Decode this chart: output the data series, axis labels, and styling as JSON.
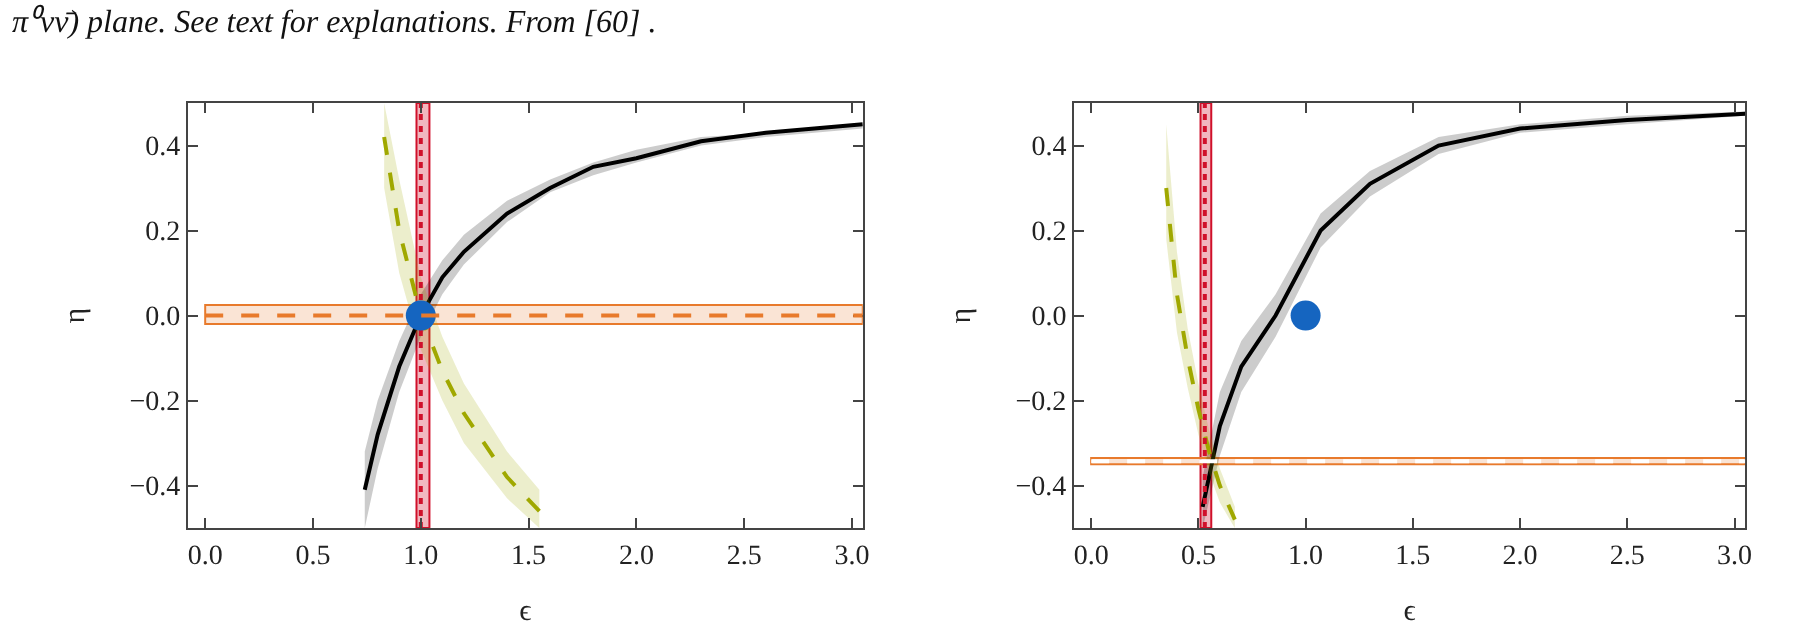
{
  "chart_data": [
    {
      "type": "line",
      "annotations": [
        "π⁰νν̄) plane. See text for explanations. From [60] ."
      ],
      "xlabel": "ϵ",
      "ylabel": "η",
      "xlim": [
        -0.08,
        3.05
      ],
      "ylim": [
        -0.5,
        0.5
      ],
      "grid": false,
      "marker": "none",
      "xticks": [
        {
          "value": 0,
          "label": "0.0"
        },
        {
          "value": 0.5,
          "label": "0.5"
        },
        {
          "value": 1,
          "label": "1.0"
        },
        {
          "value": 1.5,
          "label": "1.5"
        },
        {
          "value": 2,
          "label": "2.0"
        },
        {
          "value": 2.5,
          "label": "2.5"
        },
        {
          "value": 3,
          "label": "3.0"
        }
      ],
      "yticks": [
        {
          "value": -0.4,
          "label": "−0.4"
        },
        {
          "value": -0.2,
          "label": "−0.2"
        },
        {
          "value": 0,
          "label": "0.0"
        },
        {
          "value": 0.2,
          "label": "0.2"
        },
        {
          "value": 0.4,
          "label": "0.4"
        }
      ],
      "bands": [
        {
          "axis": "x",
          "from": 0.98,
          "to": 1.04,
          "color": "#d0102a"
        },
        {
          "axis": "y",
          "from": -0.02,
          "to": 0.025,
          "color": "#e87a2c"
        }
      ],
      "ref_lines": [
        {
          "axis": "y",
          "value": 0,
          "color": "#e87a2c",
          "line_style": "dashed"
        }
      ],
      "series": [
        {
          "color": "#000000",
          "line_style": "solid",
          "x": [
            0.74,
            0.8,
            0.9,
            1.0,
            1.1,
            1.2,
            1.4,
            1.6,
            1.8,
            2.0,
            2.3,
            2.6,
            3.05
          ],
          "values": [
            -0.41,
            -0.28,
            -0.12,
            0.0,
            0.09,
            0.15,
            0.24,
            0.3,
            0.35,
            0.37,
            0.41,
            0.43,
            0.45
          ],
          "lower": [
            -0.5,
            -0.36,
            -0.18,
            -0.05,
            0.05,
            0.12,
            0.22,
            0.29,
            0.33,
            0.36,
            0.4,
            0.42,
            0.44
          ],
          "upper": [
            -0.32,
            -0.2,
            -0.06,
            0.05,
            0.13,
            0.19,
            0.27,
            0.32,
            0.36,
            0.39,
            0.42,
            0.43,
            0.45
          ]
        },
        {
          "color": "#a0a800",
          "line_style": "dashed",
          "x": [
            0.83,
            0.9,
            1.0,
            1.1,
            1.2,
            1.4,
            1.55
          ],
          "values": [
            0.42,
            0.2,
            0.0,
            -0.13,
            -0.23,
            -0.38,
            -0.46
          ],
          "lower": [
            0.3,
            0.1,
            -0.08,
            -0.2,
            -0.3,
            -0.43,
            -0.5
          ],
          "upper": [
            0.5,
            0.32,
            0.09,
            -0.05,
            -0.16,
            -0.32,
            -0.41
          ]
        },
        {
          "color": "#d0102a",
          "line_style": "dotted",
          "x": [
            1.0,
            1.0
          ],
          "values": [
            -0.5,
            0.5
          ]
        },
        {
          "type": "scatter",
          "marker": "circle",
          "color": "#1565c0",
          "x": [
            1.0
          ],
          "values": [
            0.0
          ]
        }
      ]
    },
    {
      "type": "line",
      "xlabel": "ϵ",
      "ylabel": "η",
      "xlim": [
        -0.08,
        3.05
      ],
      "ylim": [
        -0.5,
        0.5
      ],
      "grid": false,
      "marker": "none",
      "xticks": [
        {
          "value": 0,
          "label": "0.0"
        },
        {
          "value": 0.5,
          "label": "0.5"
        },
        {
          "value": 1,
          "label": "1.0"
        },
        {
          "value": 1.5,
          "label": "1.5"
        },
        {
          "value": 2,
          "label": "2.0"
        },
        {
          "value": 2.5,
          "label": "2.5"
        },
        {
          "value": 3,
          "label": "3.0"
        }
      ],
      "yticks": [
        {
          "value": -0.4,
          "label": "−0.4"
        },
        {
          "value": -0.2,
          "label": "−0.2"
        },
        {
          "value": 0,
          "label": "0.0"
        },
        {
          "value": 0.2,
          "label": "0.2"
        },
        {
          "value": 0.4,
          "label": "0.4"
        }
      ],
      "bands": [
        {
          "axis": "x",
          "from": 0.51,
          "to": 0.56,
          "color": "#d0102a"
        },
        {
          "axis": "y",
          "from": -0.35,
          "to": -0.335,
          "color": "#e87a2c"
        }
      ],
      "ref_lines": [
        {
          "axis": "y",
          "value": -0.343,
          "color": "#ffffff",
          "line_style": "dashed"
        }
      ],
      "series": [
        {
          "color": "#000000",
          "line_style": "solid",
          "x": [
            0.52,
            0.6,
            0.7,
            0.86,
            1.07,
            1.3,
            1.62,
            2.0,
            2.5,
            3.05
          ],
          "values": [
            -0.45,
            -0.26,
            -0.12,
            0.0,
            0.2,
            0.31,
            0.4,
            0.44,
            0.46,
            0.475
          ],
          "lower": [
            -0.5,
            -0.33,
            -0.18,
            -0.05,
            0.16,
            0.28,
            0.38,
            0.43,
            0.45,
            0.47
          ],
          "upper": [
            -0.38,
            -0.18,
            -0.06,
            0.05,
            0.24,
            0.34,
            0.42,
            0.45,
            0.47,
            0.48
          ]
        },
        {
          "color": "#a0a800",
          "line_style": "dashed",
          "x": [
            0.35,
            0.4,
            0.45,
            0.5,
            0.55,
            0.6,
            0.67
          ],
          "values": [
            0.3,
            0.05,
            -0.1,
            -0.22,
            -0.32,
            -0.4,
            -0.48
          ],
          "lower": [
            0.18,
            -0.04,
            -0.17,
            -0.28,
            -0.37,
            -0.44,
            -0.5
          ],
          "upper": [
            0.45,
            0.15,
            -0.03,
            -0.16,
            -0.27,
            -0.36,
            -0.45
          ]
        },
        {
          "color": "#d0102a",
          "line_style": "dotted",
          "x": [
            0.53,
            0.53
          ],
          "values": [
            -0.5,
            0.5
          ]
        },
        {
          "type": "scatter",
          "marker": "circle",
          "color": "#1565c0",
          "x": [
            1.0
          ],
          "values": [
            0.0
          ]
        }
      ]
    }
  ]
}
